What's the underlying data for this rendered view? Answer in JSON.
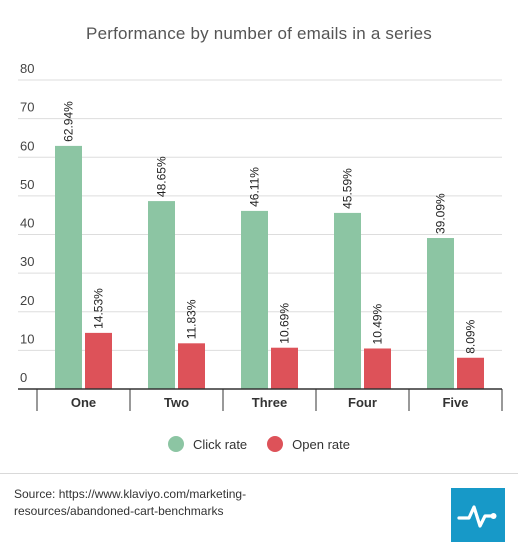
{
  "chart_data": {
    "type": "bar",
    "title": "Performance by number of emails in a series",
    "categories": [
      "One",
      "Two",
      "Three",
      "Four",
      "Five"
    ],
    "series": [
      {
        "name": "Click rate",
        "color": "#8cc5a3",
        "values": [
          62.94,
          48.65,
          46.11,
          45.59,
          39.09
        ],
        "labels": [
          "62.94%",
          "48.65%",
          "46.11%",
          "45.59%",
          "39.09%"
        ]
      },
      {
        "name": "Open rate",
        "color": "#dd5259",
        "values": [
          14.53,
          11.83,
          10.69,
          10.49,
          8.09
        ],
        "labels": [
          "14.53%",
          "11.83%",
          "10.69%",
          "10.49%",
          "8.09%"
        ]
      }
    ],
    "ylim": [
      0,
      80
    ],
    "yticks": [
      "0",
      "10",
      "20",
      "30",
      "40",
      "50",
      "60",
      "70",
      "80"
    ],
    "xlabel": "",
    "ylabel": "",
    "grid": true,
    "legend": "bottom-center"
  },
  "footer": {
    "source": "Source: https://www.klaviyo.com/marketing-resources/abandoned-cart-benchmarks",
    "logo_icon": "pulse-line-icon"
  }
}
